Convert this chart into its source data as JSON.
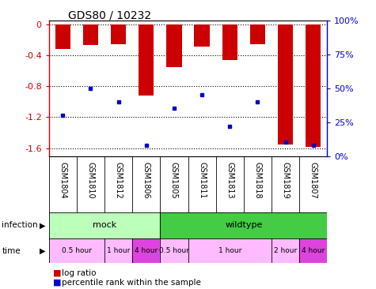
{
  "title": "GDS80 / 10232",
  "samples": [
    "GSM1804",
    "GSM1810",
    "GSM1812",
    "GSM1806",
    "GSM1805",
    "GSM1811",
    "GSM1813",
    "GSM1818",
    "GSM1819",
    "GSM1807"
  ],
  "log_ratios": [
    -0.32,
    -0.27,
    -0.26,
    -0.92,
    -0.55,
    -0.29,
    -0.46,
    -0.26,
    -1.55,
    -1.58
  ],
  "percentile_ranks": [
    30,
    50,
    40,
    8,
    35,
    45,
    22,
    40,
    10,
    8
  ],
  "ylim_left": [
    -1.7,
    0.05
  ],
  "ylim_right": [
    -1.7,
    0.05
  ],
  "left_yticks": [
    0,
    -0.4,
    -0.8,
    -1.2,
    -1.6
  ],
  "right_yticks": [
    0,
    25,
    50,
    75,
    100
  ],
  "bar_color": "#cc0000",
  "dot_color": "#0000cc",
  "bar_width": 0.55,
  "infection_groups": [
    {
      "label": "mock",
      "start": 0,
      "end": 4
    },
    {
      "label": "wildtype",
      "start": 4,
      "end": 10
    }
  ],
  "time_groups": [
    {
      "label": "0.5 hour",
      "start": 0,
      "end": 2,
      "dark": false
    },
    {
      "label": "1 hour",
      "start": 2,
      "end": 3,
      "dark": false
    },
    {
      "label": "4 hour",
      "start": 3,
      "end": 4,
      "dark": true
    },
    {
      "label": "0.5 hour",
      "start": 4,
      "end": 5,
      "dark": false
    },
    {
      "label": "1 hour",
      "start": 5,
      "end": 8,
      "dark": false
    },
    {
      "label": "2 hour",
      "start": 8,
      "end": 9,
      "dark": false
    },
    {
      "label": "4 hour",
      "start": 9,
      "end": 10,
      "dark": true
    }
  ],
  "left_ylabel_color": "#cc0000",
  "right_ylabel_color": "#0000cc",
  "infection_row_color_mock": "#bbffbb",
  "infection_row_color_wildtype": "#44cc44",
  "time_row_color_light": "#ffbbff",
  "time_row_color_dark": "#dd44dd",
  "gsm_bg_color": "#cccccc",
  "plot_bg_color": "#ffffff"
}
